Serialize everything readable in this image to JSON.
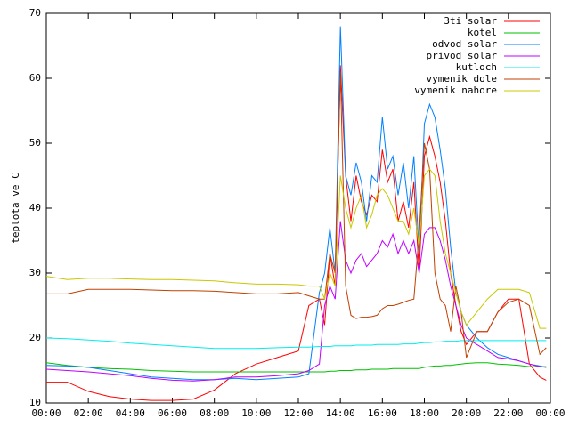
{
  "chart_data": {
    "type": "line",
    "ylabel": "teplota ve C",
    "x": [
      0,
      1,
      2,
      3,
      4,
      5,
      6,
      7,
      8,
      9,
      10,
      11,
      12,
      12.5,
      13,
      13.25,
      13.5,
      13.75,
      14,
      14.25,
      14.5,
      14.75,
      15,
      15.25,
      15.5,
      15.75,
      16,
      16.25,
      16.5,
      16.75,
      17,
      17.25,
      17.5,
      17.75,
      18,
      18.25,
      18.5,
      18.75,
      19,
      19.25,
      19.5,
      19.75,
      20,
      20.5,
      21,
      21.5,
      22,
      22.5,
      23,
      23.5,
      23.8
    ],
    "xlim": [
      0,
      24
    ],
    "xticks": [
      {
        "value": 0,
        "label": "00:00"
      },
      {
        "value": 2,
        "label": "02:00"
      },
      {
        "value": 4,
        "label": "04:00"
      },
      {
        "value": 6,
        "label": "06:00"
      },
      {
        "value": 8,
        "label": "08:00"
      },
      {
        "value": 10,
        "label": "10:00"
      },
      {
        "value": 12,
        "label": "12:00"
      },
      {
        "value": 14,
        "label": "14:00"
      },
      {
        "value": 16,
        "label": "16:00"
      },
      {
        "value": 18,
        "label": "18:00"
      },
      {
        "value": 20,
        "label": "20:00"
      },
      {
        "value": 22,
        "label": "22:00"
      },
      {
        "value": 24,
        "label": "00:00"
      }
    ],
    "ylim": [
      10,
      70
    ],
    "yticks": [
      10,
      20,
      30,
      40,
      50,
      60,
      70
    ],
    "legend": "top-right",
    "series": [
      {
        "name": "3ti solar",
        "color": "#ff0000",
        "values": [
          13.2,
          13.2,
          11.8,
          11,
          10.6,
          10.4,
          10.4,
          10.6,
          12,
          14.5,
          16,
          17,
          18,
          25,
          26,
          22,
          33,
          28,
          62,
          45,
          38,
          45,
          41,
          39,
          42,
          41,
          49,
          44,
          46,
          38,
          41,
          37,
          44,
          30,
          48,
          51,
          48,
          44,
          38,
          30,
          25,
          21,
          19,
          21,
          21,
          24,
          26,
          26,
          16,
          14,
          13.5
        ]
      },
      {
        "name": "kotel",
        "color": "#00c000",
        "values": [
          16.2,
          15.8,
          15.5,
          15.3,
          15.2,
          15,
          14.9,
          14.8,
          14.8,
          14.8,
          14.8,
          14.8,
          14.8,
          14.8,
          14.8,
          14.8,
          14.9,
          14.9,
          15,
          15,
          15,
          15.1,
          15.1,
          15.1,
          15.2,
          15.2,
          15.2,
          15.2,
          15.3,
          15.3,
          15.3,
          15.3,
          15.3,
          15.3,
          15.5,
          15.6,
          15.7,
          15.7,
          15.8,
          15.8,
          15.9,
          16,
          16.1,
          16.2,
          16.2,
          16,
          15.9,
          15.8,
          15.6,
          15.6,
          15.6
        ]
      },
      {
        "name": "odvod solar",
        "color": "#0080ff",
        "values": [
          15.8,
          15.7,
          15.5,
          15,
          14.5,
          14,
          13.8,
          13.6,
          13.6,
          13.8,
          13.6,
          13.8,
          14,
          14.5,
          27,
          30,
          37,
          30,
          68,
          45,
          42,
          47,
          44,
          38,
          45,
          44,
          54,
          46,
          48,
          42,
          47,
          40,
          48,
          33,
          53,
          56,
          54,
          49,
          43,
          34,
          27,
          24,
          22,
          20,
          18.5,
          17.5,
          17,
          16.5,
          16,
          15.7,
          15.5
        ]
      },
      {
        "name": "privod solar",
        "color": "#c000ff",
        "values": [
          15.2,
          15,
          14.8,
          14.5,
          14.2,
          13.8,
          13.5,
          13.4,
          13.6,
          14,
          14,
          14.2,
          14.5,
          15,
          16,
          25,
          28,
          26,
          38,
          32,
          30,
          32,
          33,
          31,
          32,
          33,
          35,
          34,
          36,
          33,
          35,
          33,
          35,
          30,
          36,
          37,
          37,
          35,
          32,
          28,
          25,
          22,
          20,
          19,
          18,
          17,
          16.8,
          16.5,
          16,
          15.6,
          15.5
        ]
      },
      {
        "name": "kutloch",
        "color": "#00eeee",
        "values": [
          20,
          19.9,
          19.7,
          19.5,
          19.2,
          19,
          18.8,
          18.6,
          18.4,
          18.4,
          18.4,
          18.5,
          18.6,
          18.6,
          18.7,
          18.7,
          18.7,
          18.8,
          18.8,
          18.8,
          18.8,
          18.9,
          18.9,
          18.9,
          18.9,
          19,
          19,
          19,
          19,
          19,
          19.1,
          19.1,
          19.1,
          19.2,
          19.3,
          19.3,
          19.4,
          19.4,
          19.5,
          19.5,
          19.5,
          19.6,
          19.6,
          19.6,
          19.6,
          19.6,
          19.6,
          19.6,
          19.6,
          19.6,
          19.6
        ]
      },
      {
        "name": "vymenik dole",
        "color": "#c04000",
        "values": [
          26.8,
          26.8,
          27.5,
          27.5,
          27.5,
          27.4,
          27.3,
          27.3,
          27.2,
          27,
          26.8,
          26.8,
          27,
          26.5,
          26,
          26,
          33,
          30,
          61,
          28,
          23.5,
          23,
          23.2,
          23.2,
          23.3,
          23.5,
          24.5,
          25,
          25,
          25.2,
          25.5,
          25.8,
          26,
          36,
          50,
          46,
          30,
          26,
          25,
          21,
          28,
          24,
          17,
          21,
          21,
          24,
          25.5,
          26,
          25,
          17.5,
          18.5
        ]
      },
      {
        "name": "vymenik nahore",
        "color": "#c8c800",
        "values": [
          29.5,
          29,
          29.2,
          29.2,
          29.1,
          29,
          29,
          28.9,
          28.8,
          28.5,
          28.3,
          28.3,
          28.2,
          28,
          28,
          26,
          30,
          28,
          45,
          40,
          37,
          40,
          42,
          37,
          39,
          42,
          43,
          42,
          40,
          38,
          38,
          36,
          40,
          34,
          45,
          46,
          45,
          38,
          33,
          30,
          27,
          24,
          22,
          24,
          26,
          27.5,
          27.5,
          27.5,
          27,
          21.5,
          21.5
        ]
      }
    ]
  }
}
